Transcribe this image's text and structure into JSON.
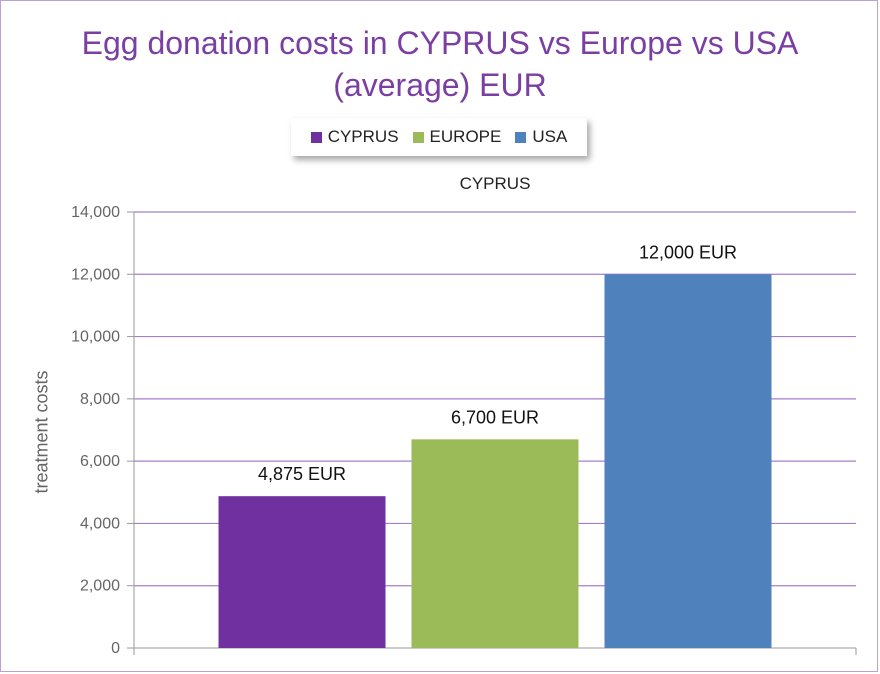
{
  "chart_data": {
    "type": "bar",
    "title": "Egg donation costs in CYPRUS vs Europe vs USA (average) EUR",
    "title_lines": [
      "Egg donation costs in CYPRUS vs Europe vs USA",
      "(average) EUR"
    ],
    "subtitle": "CYPRUS",
    "xlabel": "",
    "ylabel": "treatment costs",
    "categories": [
      "CYPRUS",
      "EUROPE",
      "USA"
    ],
    "values": [
      4875,
      6700,
      12000
    ],
    "data_labels": [
      "4,875 EUR",
      "6,700 EUR",
      "12,000 EUR"
    ],
    "colors": [
      "#7030a0",
      "#9bbb59",
      "#4f81bd"
    ],
    "ylim": [
      0,
      14000
    ],
    "yticks": [
      0,
      2000,
      4000,
      6000,
      8000,
      10000,
      12000,
      14000
    ],
    "ytick_labels": [
      "0",
      "2,000",
      "4,000",
      "6,000",
      "8,000",
      "10,000",
      "12,000",
      "14,000"
    ],
    "grid": true,
    "gridline_color": "#a57fcf",
    "legend_position": "top"
  },
  "legend": {
    "items": [
      {
        "label": "CYPRUS",
        "color": "#7030a0"
      },
      {
        "label": "EUROPE",
        "color": "#9bbb59"
      },
      {
        "label": "USA",
        "color": "#4f81bd"
      }
    ]
  }
}
